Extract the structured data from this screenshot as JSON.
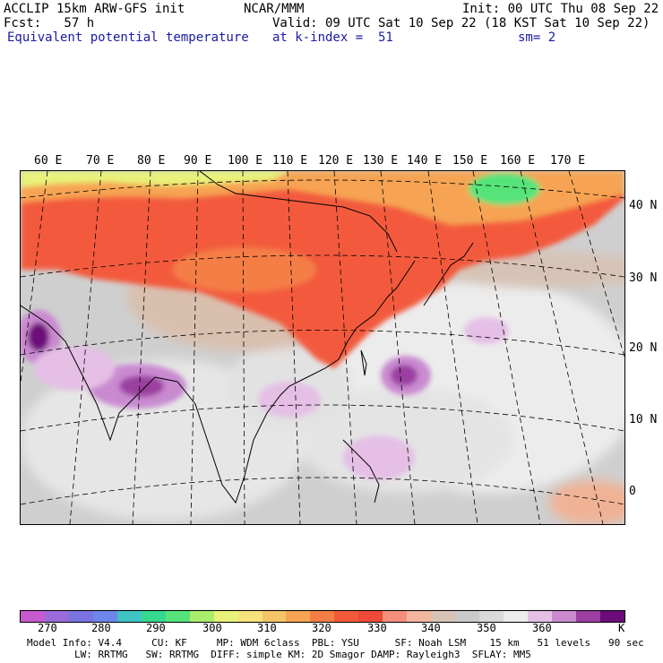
{
  "header": {
    "line1_left": "ACCLIP 15km ARW-GFS init",
    "line1_center": "NCAR/MMM",
    "line1_right": "Init: 00 UTC Thu 08 Sep 22",
    "line2_left": "Fcst:   57 h",
    "line2_right": "Valid: 09 UTC Sat 10 Sep 22 (18 KST Sat 10 Sep 22)",
    "line3_left": "Equivalent potential temperature",
    "line3_mid": "at k-index =  51",
    "line3_right": "sm= 2"
  },
  "map": {
    "lon_labels": [
      "60 E",
      "70 E",
      "80 E",
      "90 E",
      "100 E",
      "110 E",
      "120 E",
      "130 E",
      "140 E",
      "150 E",
      "160 E",
      "170 E"
    ],
    "lat_labels": [
      "40 N",
      "30 N",
      "20 N",
      "10 N",
      "0"
    ]
  },
  "colorbar": {
    "colors": [
      "#c85ad0",
      "#9b6bd9",
      "#7a73e0",
      "#6e86ea",
      "#3fc3c3",
      "#35d88f",
      "#55e37a",
      "#a8ee6c",
      "#e8f27a",
      "#f6e27a",
      "#f5c46a",
      "#f6a452",
      "#f57e46",
      "#f35a3c",
      "#ef4a3a",
      "#f48f7c",
      "#f3b5a0",
      "#d7c3b6",
      "#c9c9c9",
      "#d9d9d9",
      "#ececec",
      "#e5bfe6",
      "#c98ad0",
      "#9b3fa0",
      "#6d0b7a"
    ],
    "ticks": [
      "270",
      "280",
      "290",
      "300",
      "310",
      "320",
      "330",
      "340",
      "350",
      "360"
    ],
    "unit": "K"
  },
  "footer": {
    "line1": "Model Info: V4.4     CU: KF     MP: WDM 6class  PBL: YSU      SF: Noah LSM    15 km   51 levels   90 sec",
    "line2": "        LW: RRTMG   SW: RRTMG  DIFF: simple KM: 2D Smagor DAMP: Rayleigh3  SFLAY: MM5"
  }
}
